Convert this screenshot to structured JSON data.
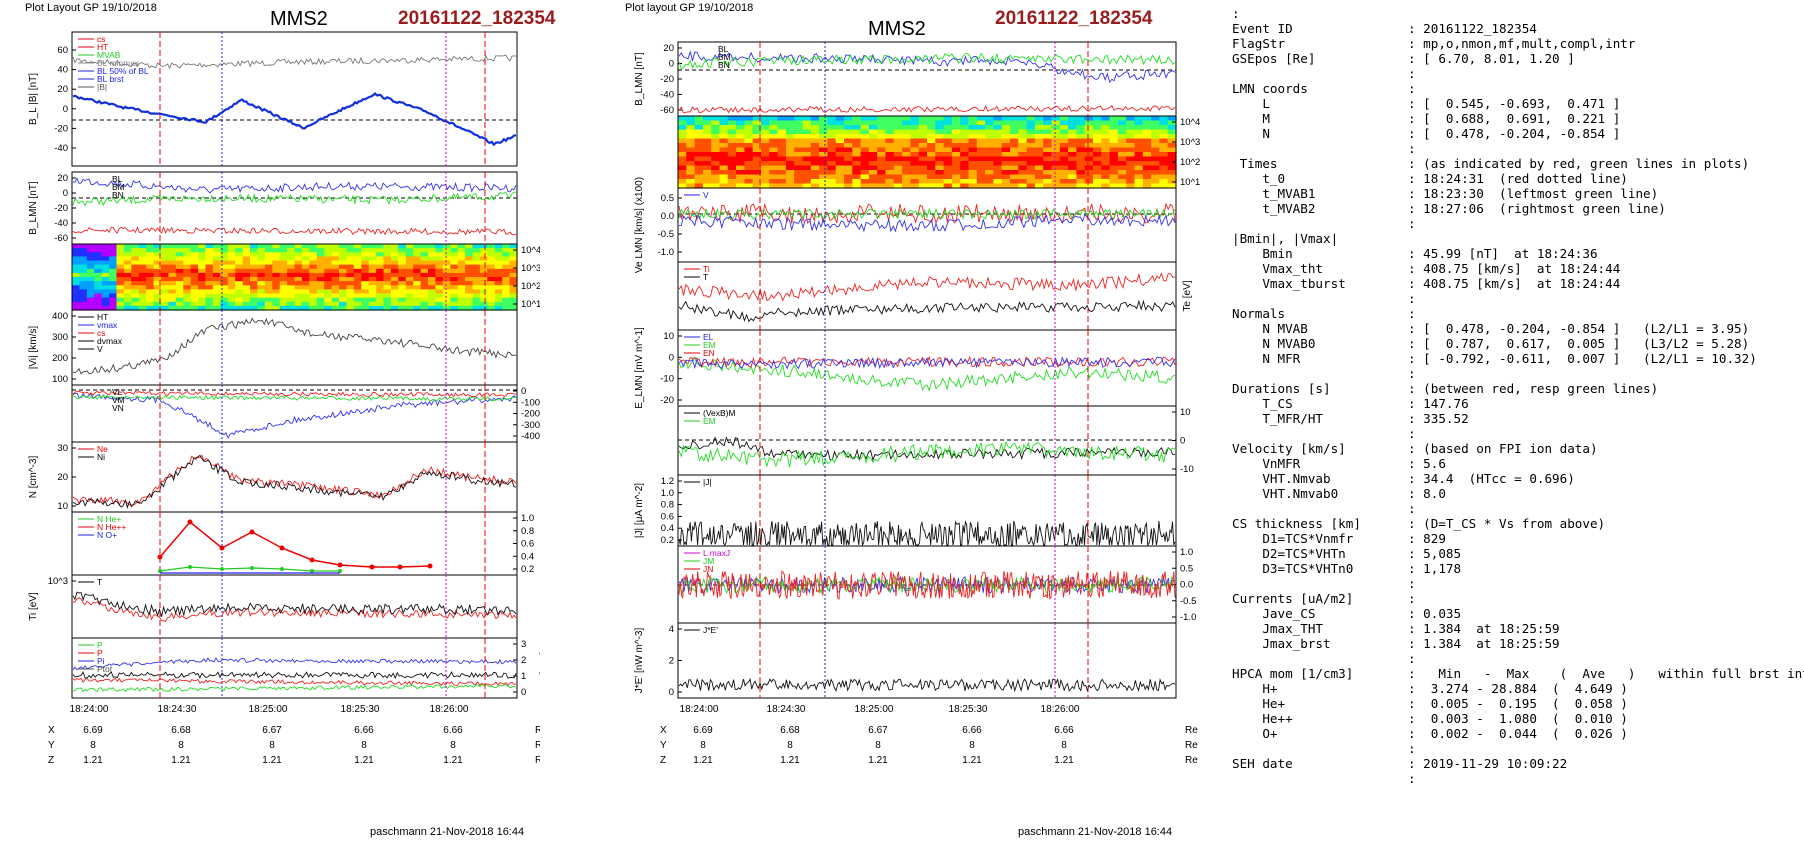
{
  "left": {
    "header": {
      "layout": "Plot Layout GP 19/10/2018",
      "sc": "MMS2",
      "event": "20161122_182354"
    },
    "panels": [
      {
        "ylabel": "B_L |B| [nT]",
        "ticks": [
          "60",
          "40",
          "20",
          "0",
          "-20",
          "-40"
        ],
        "legend": [
          "cs",
          "HT",
          "MVAB",
          "BL minmax",
          "BL 50% of BL",
          "BL brst",
          "|B|"
        ]
      },
      {
        "ylabel": "B_LMN [nT]",
        "ticks": [
          "20",
          "0",
          "-20",
          "-40",
          "-60"
        ],
        "series_labels": [
          "BL",
          "BM",
          "BN"
        ]
      },
      {
        "ylabel": "Energy (eV)",
        "ticks": [
          "10^4",
          "10^3",
          "10^2",
          "10^1"
        ]
      },
      {
        "ylabel": "|Vi| [km/s]",
        "ticks": [
          "400",
          "300",
          "200",
          "100"
        ],
        "legend": [
          "HT",
          "vmax",
          "cs",
          "dvmax",
          "V"
        ]
      },
      {
        "ylabel": "Vi LMN [km/s]",
        "ticks": [
          "0",
          "-100",
          "-200",
          "-300",
          "-400"
        ],
        "series_labels": [
          "VL",
          "VM",
          "VN"
        ]
      },
      {
        "ylabel": "N [cm^-3]",
        "ticks": [
          "30",
          "20",
          "10"
        ],
        "legend": [
          "Ne",
          "Ni"
        ]
      },
      {
        "ylabel": "Ni [cm^-3]",
        "ticks": [
          "1.0",
          "0.8",
          "0.6",
          "0.4",
          "0.2"
        ],
        "legend": [
          "N He+",
          "N He++",
          "N O+"
        ]
      },
      {
        "ylabel": "Ti [eV]",
        "ticks": [
          "10^3"
        ],
        "legend": [
          "T"
        ]
      },
      {
        "ylabel": "P [nPa]",
        "ticks": [
          "3",
          "2",
          "1",
          "0"
        ],
        "legend": [
          "P",
          "P",
          "Pi",
          "Ptot"
        ]
      }
    ],
    "time_ticks": [
      "18:24:00",
      "18:24:30",
      "18:25:00",
      "18:25:30",
      "18:26:00"
    ],
    "pos": {
      "X": [
        "6.69",
        "6.68",
        "6.67",
        "6.66",
        "6.66"
      ],
      "Y": [
        "8",
        "8",
        "8",
        "8",
        "8"
      ],
      "Z": [
        "1.21",
        "1.21",
        "1.21",
        "1.21",
        "1.21"
      ],
      "unit": "Re"
    },
    "footer": "paschmann 21-Nov-2018 16:44"
  },
  "right": {
    "header": {
      "layout": "Plot layout GP 19/10/2018",
      "sc": "MMS2",
      "event": "20161122_182354"
    },
    "panels": [
      {
        "ylabel": "B_LMN [nT]",
        "ticks": [
          "20",
          "0",
          "-20",
          "-40",
          "-60"
        ],
        "series_labels": [
          "BL",
          "BM",
          "BN"
        ]
      },
      {
        "ylabel": "Energy (eV)",
        "ticks": [
          "10^4",
          "10^3",
          "10^2",
          "10^1"
        ]
      },
      {
        "ylabel": "Ve LMN [km/s] (x100)",
        "ticks": [
          "0.5",
          "0.0",
          "-0.5",
          "-1.0"
        ],
        "legend": [
          "V"
        ]
      },
      {
        "ylabel": "Te [eV]",
        "ticks": [],
        "legend": [
          "Ti",
          "T"
        ]
      },
      {
        "ylabel": "E_LMN [mV m^-1]",
        "ticks": [
          "10",
          "0",
          "-10",
          "-20"
        ],
        "legend": [
          "EL",
          "EM",
          "EN"
        ]
      },
      {
        "ylabel": "EM [mV m^-1]",
        "ticks": [
          "10",
          "0",
          "-10"
        ],
        "legend": [
          "(VexB)M",
          "EM"
        ]
      },
      {
        "ylabel": "|J| [μA m^-2]",
        "ticks": [
          "1.2",
          "1.0",
          "0.8",
          "0.6",
          "0.4",
          "0.2"
        ],
        "legend": [
          "|J|"
        ]
      },
      {
        "ylabel": "J [μA m^-2]",
        "ticks": [
          "1.0",
          "0.5",
          "0.0",
          "-0.5",
          "-1.0"
        ],
        "legend": [
          "L maxJ",
          "JM",
          "JN"
        ]
      },
      {
        "ylabel": "J*E' [nW m^-3]",
        "ticks": [
          "4",
          "2",
          "0"
        ],
        "legend": [
          "J*E'"
        ]
      }
    ],
    "time_ticks": [
      "18:24:00",
      "18:24:30",
      "18:25:00",
      "18:25:30",
      "18:26:00"
    ],
    "pos": {
      "X": [
        "6.69",
        "6.68",
        "6.67",
        "6.66",
        "6.66"
      ],
      "Y": [
        "8",
        "8",
        "8",
        "8",
        "8"
      ],
      "Z": [
        "1.21",
        "1.21",
        "1.21",
        "1.21",
        "1.21"
      ],
      "unit": "Re"
    },
    "footer": "paschmann 21-Nov-2018 16:44"
  },
  "summary": [
    {
      "k": ":",
      "v": ""
    },
    {
      "k": "Event ID",
      "v": ": 20161122_182354"
    },
    {
      "k": "FlagStr",
      "v": ": mp,o,nmon,mf,mult,compl,intr"
    },
    {
      "k": "GSEpos [Re]",
      "v": ": [ 6.70, 8.01, 1.20 ]"
    },
    {
      "k": "",
      "v": ":"
    },
    {
      "k": "LMN coords",
      "v": ":"
    },
    {
      "k": "    L",
      "v": ": [  0.545, -0.693,  0.471 ]"
    },
    {
      "k": "    M",
      "v": ": [  0.688,  0.691,  0.221 ]"
    },
    {
      "k": "    N",
      "v": ": [  0.478, -0.204, -0.854 ]"
    },
    {
      "k": "",
      "v": ":"
    },
    {
      "k": " Times",
      "v": ": (as indicated by red, green lines in plots)"
    },
    {
      "k": "    t_0",
      "v": ": 18:24:31  (red dotted line)"
    },
    {
      "k": "    t_MVAB1",
      "v": ": 18:23:30  (leftmost green line)"
    },
    {
      "k": "    t_MVAB2",
      "v": ": 18:27:06  (rightmost green line)"
    },
    {
      "k": "",
      "v": ":"
    },
    {
      "k": "|Bmin|, |Vmax|",
      "v": ""
    },
    {
      "k": "    Bmin",
      "v": ": 45.99 [nT]  at 18:24:36"
    },
    {
      "k": "    Vmax_tht",
      "v": ": 408.75 [km/s]  at 18:24:44"
    },
    {
      "k": "    Vmax_tburst",
      "v": ": 408.75 [km/s]  at 18:24:44"
    },
    {
      "k": "",
      "v": ":"
    },
    {
      "k": "Normals",
      "v": ":"
    },
    {
      "k": "    N MVAB",
      "v": ": [  0.478, -0.204, -0.854 ]   (L2/L1 = 3.95)"
    },
    {
      "k": "    N MVAB0",
      "v": ": [  0.787,  0.617,  0.005 ]   (L3/L2 = 5.28)"
    },
    {
      "k": "    N MFR",
      "v": ": [ -0.792, -0.611,  0.007 ]   (L2/L1 = 10.32)"
    },
    {
      "k": "",
      "v": ":"
    },
    {
      "k": "Durations [s]",
      "v": ": (between red, resp green lines)"
    },
    {
      "k": "    T_CS",
      "v": ": 147.76"
    },
    {
      "k": "    T_MFR/HT",
      "v": ": 335.52"
    },
    {
      "k": "",
      "v": ":"
    },
    {
      "k": "Velocity [km/s]",
      "v": ": (based on FPI ion data)"
    },
    {
      "k": "    VnMFR",
      "v": ": 5.6"
    },
    {
      "k": "    VHT.Nmvab",
      "v": ": 34.4  (HTcc = 0.696)"
    },
    {
      "k": "    VHT.Nmvab0",
      "v": ": 8.0"
    },
    {
      "k": "",
      "v": ":"
    },
    {
      "k": "CS thickness [km]",
      "v": ": (D=T_CS * Vs from above)"
    },
    {
      "k": "    D1=TCS*Vnmfr",
      "v": ": 829"
    },
    {
      "k": "    D2=TCS*VHTn",
      "v": ": 5,085"
    },
    {
      "k": "    D3=TCS*VHTn0",
      "v": ": 1,178"
    },
    {
      "k": "",
      "v": ":"
    },
    {
      "k": "Currents [uA/m2]",
      "v": ":"
    },
    {
      "k": "    Jave_CS",
      "v": ": 0.035"
    },
    {
      "k": "    Jmax_THT",
      "v": ": 1.384  at 18:25:59"
    },
    {
      "k": "    Jmax_brst",
      "v": ": 1.384  at 18:25:59"
    },
    {
      "k": "",
      "v": ":"
    },
    {
      "k": "HPCA mom [1/cm3]",
      "v": ":   Min   -  Max    (  Ave   )   within full brst int"
    },
    {
      "k": "    H+",
      "v": ":  3.274 - 28.884  (  4.649 )"
    },
    {
      "k": "    He+",
      "v": ":  0.005 -  0.195  (  0.058 )"
    },
    {
      "k": "    He++",
      "v": ":  0.003 -  1.080  (  0.010 )"
    },
    {
      "k": "    O+",
      "v": ":  0.002 -  0.044  (  0.026 )"
    },
    {
      "k": "",
      "v": ":"
    },
    {
      "k": "SEH date",
      "v": ": 2019-11-29 10:09:22"
    },
    {
      "k": "",
      "v": ":"
    }
  ],
  "chart_data": [
    {
      "type": "line",
      "title": "MMS2 20161122_182354 (left panel stack)",
      "x_range": [
        "18:23:45",
        "18:26:35"
      ],
      "x_ticks": [
        "18:24:00",
        "18:24:30",
        "18:25:00",
        "18:25:30",
        "18:26:00"
      ],
      "series": [
        {
          "name": "B_L",
          "x": [
            "18:23:45",
            "18:24:00",
            "18:24:20",
            "18:24:36",
            "18:24:55",
            "18:25:10",
            "18:25:30",
            "18:25:50",
            "18:26:10",
            "18:26:30"
          ],
          "values": [
            20,
            15,
            0,
            -2,
            18,
            -15,
            5,
            22,
            -10,
            -22
          ]
        },
        {
          "name": "|B|",
          "x": [
            "18:23:45",
            "18:24:30",
            "18:25:00",
            "18:25:30",
            "18:26:00",
            "18:26:30"
          ],
          "values": [
            60,
            50,
            58,
            57,
            56,
            60
          ]
        },
        {
          "name": "|Vi|",
          "x": [
            "18:23:45",
            "18:24:15",
            "18:24:30",
            "18:24:44",
            "18:25:10",
            "18:25:40",
            "18:26:05",
            "18:26:30"
          ],
          "values": [
            100,
            150,
            300,
            408.75,
            290,
            250,
            210,
            160
          ]
        },
        {
          "name": "Ni",
          "x": [
            "18:23:45",
            "18:24:00",
            "18:24:30",
            "18:24:45",
            "18:25:15",
            "18:25:45",
            "18:26:05",
            "18:26:30"
          ],
          "values": [
            8,
            6,
            30,
            15,
            14,
            10,
            20,
            18
          ]
        },
        {
          "name": "N He++",
          "x": [
            "18:24:20",
            "18:24:30",
            "18:24:45",
            "18:24:55",
            "18:25:05",
            "18:25:15",
            "18:25:30",
            "18:25:45",
            "18:26:00",
            "18:26:10"
          ],
          "values": [
            0.35,
            1.0,
            0.6,
            0.8,
            0.3,
            0.45,
            0.3,
            0.25,
            0.28,
            0.3
          ]
        }
      ]
    },
    {
      "type": "line",
      "title": "MMS2 20161122_182354 (right panel stack)",
      "x_range": [
        "18:23:45",
        "18:26:35"
      ],
      "x_ticks": [
        "18:24:00",
        "18:24:30",
        "18:25:00",
        "18:25:30",
        "18:26:00"
      ],
      "series": [
        {
          "name": "|J|",
          "x": [
            "18:23:45",
            "18:24:30",
            "18:25:00",
            "18:25:30",
            "18:25:59",
            "18:26:30"
          ],
          "values": [
            0.2,
            0.4,
            0.6,
            0.5,
            1.384,
            0.6
          ]
        },
        {
          "name": "J*E'",
          "x": [
            "18:23:45",
            "18:24:30",
            "18:25:00",
            "18:25:30",
            "18:26:00",
            "18:26:30"
          ],
          "values": [
            0.2,
            1.5,
            0.5,
            2.5,
            4.5,
            0.8
          ]
        }
      ]
    }
  ]
}
